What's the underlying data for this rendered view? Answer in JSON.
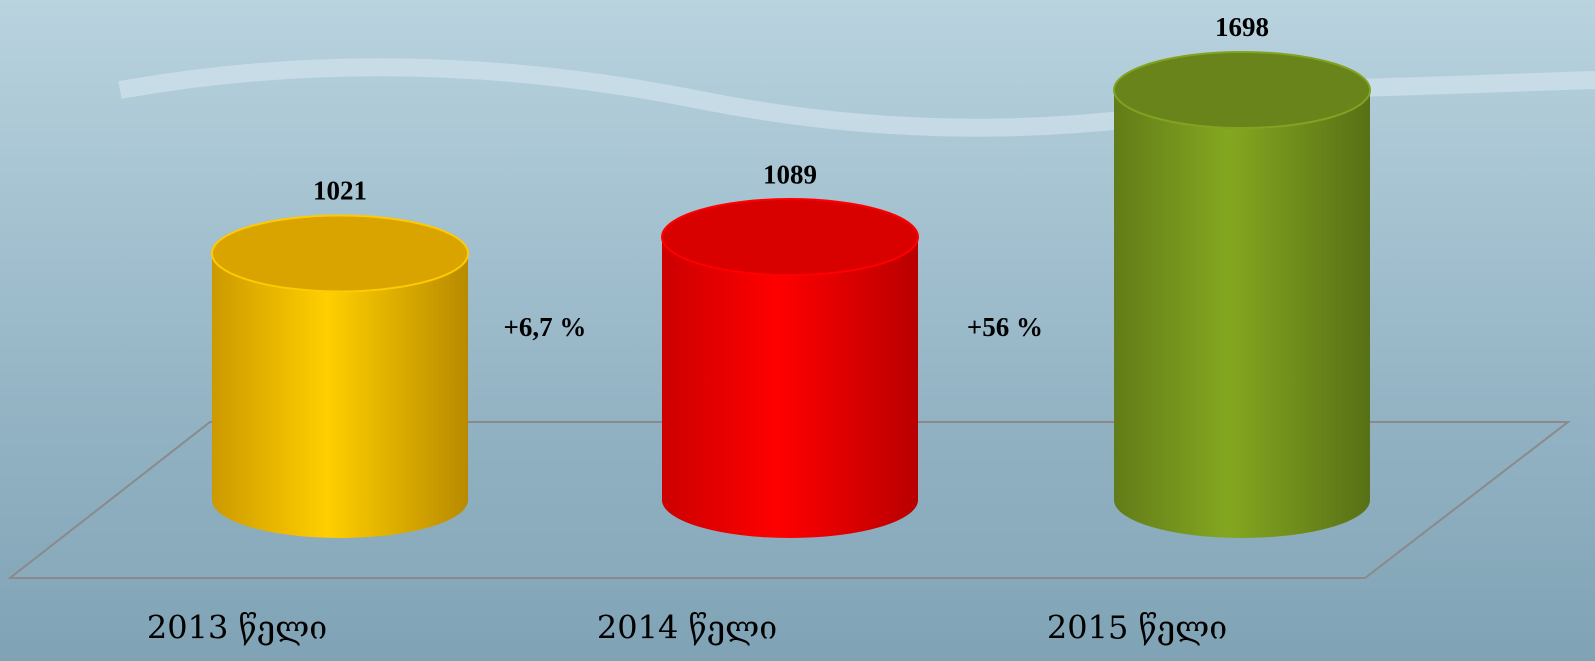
{
  "chart_data": {
    "type": "bar",
    "categories": [
      "2013 წელი",
      "2014 წელი",
      "2015 წელი"
    ],
    "values": [
      1021,
      1089,
      1698
    ],
    "colors": [
      "#ffc000",
      "#ff0000",
      "#7a9b1e"
    ],
    "annotations": [
      "+6,7 %",
      "+56 %"
    ]
  }
}
